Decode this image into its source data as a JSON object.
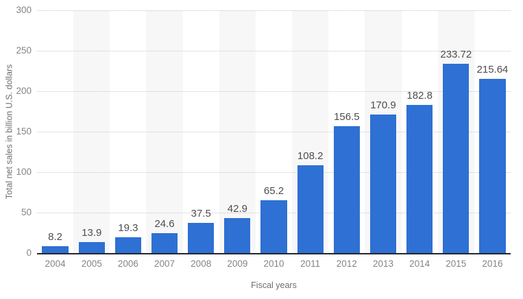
{
  "chart_data": {
    "type": "bar",
    "categories": [
      "2004",
      "2005",
      "2006",
      "2007",
      "2008",
      "2009",
      "2010",
      "2011",
      "2012",
      "2013",
      "2014",
      "2015",
      "2016"
    ],
    "values": [
      8.2,
      13.9,
      19.3,
      24.6,
      37.5,
      42.9,
      65.2,
      108.2,
      156.5,
      170.9,
      182.8,
      233.72,
      215.64
    ],
    "value_labels": [
      "8.2",
      "13.9",
      "19.3",
      "24.6",
      "37.5",
      "42.9",
      "65.2",
      "108.2",
      "156.5",
      "170.9",
      "182.8",
      "233.72",
      "215.64"
    ],
    "xlabel": "Fiscal years",
    "ylabel": "Total net sales in billion U.S. dollars",
    "ylim": [
      0,
      300
    ],
    "yticks": [
      0,
      50,
      100,
      150,
      200,
      250,
      300
    ],
    "grid": "horizontal-dotted",
    "legend": "none",
    "plot_background": "alternating-column-stripes",
    "colors": {
      "bar": "#2e70d3",
      "stripe": "#f7f7f7",
      "gridline": "#c8c8c8",
      "axis_line": "#24262b",
      "tick_label": "#848484",
      "value_label": "#4d4d4d",
      "axis_title": "#6e6e6e",
      "background": "#ffffff"
    }
  }
}
